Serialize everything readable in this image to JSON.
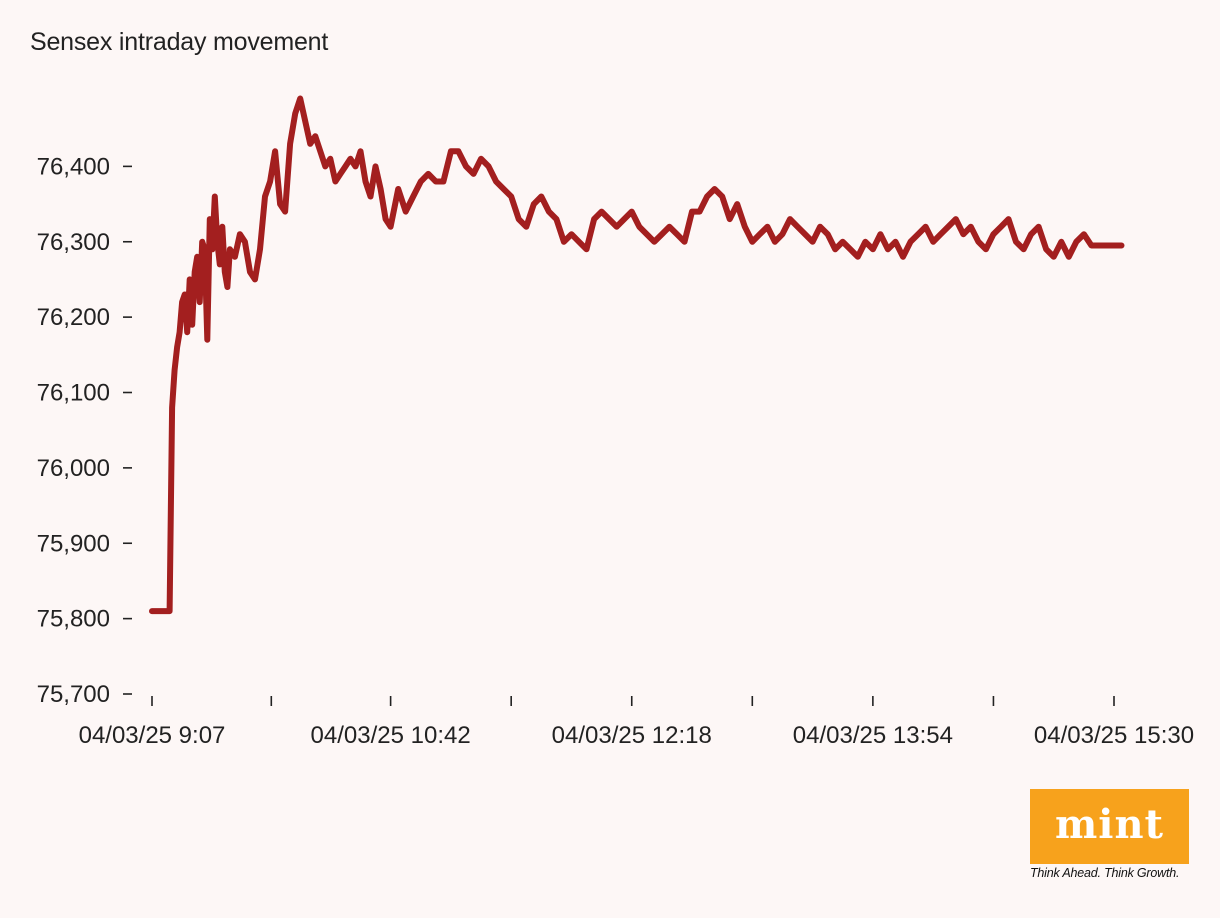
{
  "chart_data": {
    "type": "line",
    "title": "Sensex intraday movement",
    "xlabel": "",
    "ylabel": "",
    "x_tick_labels": [
      "04/03/25 9:07",
      "04/03/25 10:42",
      "04/03/25 12:18",
      "04/03/25 13:54",
      "04/03/25 15:30"
    ],
    "xlim": [
      "04/03/25 9:07",
      "04/03/25 15:30"
    ],
    "y_ticks": [
      75700,
      75800,
      75900,
      76000,
      76100,
      76200,
      76300,
      76400
    ],
    "y_tick_labels": [
      "75,700",
      "75,800",
      "75,900",
      "76,000",
      "76,100",
      "76,200",
      "76,300",
      "76,400"
    ],
    "ylim": [
      75700,
      76500
    ],
    "grid": false,
    "series": [
      {
        "color": "#a31f1f",
        "x": [
          "9:07",
          "9:13",
          "9:14",
          "9:15",
          "9:16",
          "9:17",
          "9:18",
          "9:19",
          "9:20",
          "9:21",
          "9:22",
          "9:23",
          "9:24",
          "9:25",
          "9:26",
          "9:27",
          "9:28",
          "9:29",
          "9:30",
          "9:31",
          "9:32",
          "9:33",
          "9:34",
          "9:35",
          "9:36",
          "9:37",
          "9:38",
          "9:40",
          "9:42",
          "9:44",
          "9:46",
          "9:48",
          "9:50",
          "9:52",
          "9:54",
          "9:56",
          "9:58",
          "10:00",
          "10:02",
          "10:04",
          "10:06",
          "10:08",
          "10:10",
          "10:12",
          "10:14",
          "10:16",
          "10:18",
          "10:20",
          "10:22",
          "10:24",
          "10:26",
          "10:28",
          "10:30",
          "10:32",
          "10:34",
          "10:36",
          "10:38",
          "10:40",
          "10:42",
          "10:45",
          "10:48",
          "10:51",
          "10:54",
          "10:57",
          "11:00",
          "11:03",
          "11:06",
          "11:09",
          "11:12",
          "11:15",
          "11:18",
          "11:21",
          "11:24",
          "11:27",
          "11:30",
          "11:33",
          "11:36",
          "11:39",
          "11:42",
          "11:45",
          "11:48",
          "11:51",
          "11:54",
          "11:57",
          "12:00",
          "12:03",
          "12:06",
          "12:09",
          "12:12",
          "12:15",
          "12:18",
          "12:21",
          "12:24",
          "12:27",
          "12:30",
          "12:33",
          "12:36",
          "12:39",
          "12:42",
          "12:45",
          "12:48",
          "12:51",
          "12:54",
          "12:57",
          "13:00",
          "13:03",
          "13:06",
          "13:09",
          "13:12",
          "13:15",
          "13:18",
          "13:21",
          "13:24",
          "13:27",
          "13:30",
          "13:33",
          "13:36",
          "13:39",
          "13:42",
          "13:45",
          "13:48",
          "13:51",
          "13:54",
          "13:57",
          "14:00",
          "14:03",
          "14:06",
          "14:09",
          "14:12",
          "14:15",
          "14:18",
          "14:21",
          "14:24",
          "14:27",
          "14:30",
          "14:33",
          "14:36",
          "14:39",
          "14:42",
          "14:45",
          "14:48",
          "14:51",
          "14:54",
          "14:57",
          "15:00",
          "15:03",
          "15:06",
          "15:09",
          "15:12",
          "15:15",
          "15:18",
          "15:21",
          "15:24",
          "15:27",
          "15:30",
          "15:33"
        ],
        "values": [
          75810,
          75810,
          75810,
          76080,
          76130,
          76160,
          76180,
          76220,
          76230,
          76180,
          76250,
          76190,
          76260,
          76280,
          76220,
          76300,
          76290,
          76170,
          76330,
          76290,
          76360,
          76300,
          76270,
          76320,
          76260,
          76240,
          76290,
          76280,
          76310,
          76300,
          76260,
          76250,
          76290,
          76360,
          76380,
          76420,
          76350,
          76340,
          76430,
          76470,
          76490,
          76460,
          76430,
          76440,
          76420,
          76400,
          76410,
          76380,
          76390,
          76400,
          76410,
          76400,
          76420,
          76380,
          76360,
          76400,
          76370,
          76330,
          76320,
          76370,
          76340,
          76360,
          76380,
          76390,
          76380,
          76380,
          76420,
          76420,
          76400,
          76390,
          76410,
          76400,
          76380,
          76370,
          76360,
          76330,
          76320,
          76350,
          76360,
          76340,
          76330,
          76300,
          76310,
          76300,
          76290,
          76330,
          76340,
          76330,
          76320,
          76330,
          76340,
          76320,
          76310,
          76300,
          76310,
          76320,
          76310,
          76300,
          76340,
          76340,
          76360,
          76370,
          76360,
          76330,
          76350,
          76320,
          76300,
          76310,
          76320,
          76300,
          76310,
          76330,
          76320,
          76310,
          76300,
          76320,
          76310,
          76290,
          76300,
          76290,
          76280,
          76300,
          76290,
          76310,
          76290,
          76300,
          76280,
          76300,
          76310,
          76320,
          76300,
          76310,
          76320,
          76330,
          76310,
          76320,
          76300,
          76290,
          76310,
          76320,
          76330,
          76300,
          76290,
          76310,
          76320,
          76290,
          76280,
          76300,
          76280,
          76300,
          76310,
          76295,
          76295,
          76295,
          76295,
          76295
        ]
      }
    ]
  },
  "brand": {
    "logo_text": "mint",
    "tagline": "Think Ahead. Think Growth.",
    "logo_color": "#f7a21c"
  }
}
